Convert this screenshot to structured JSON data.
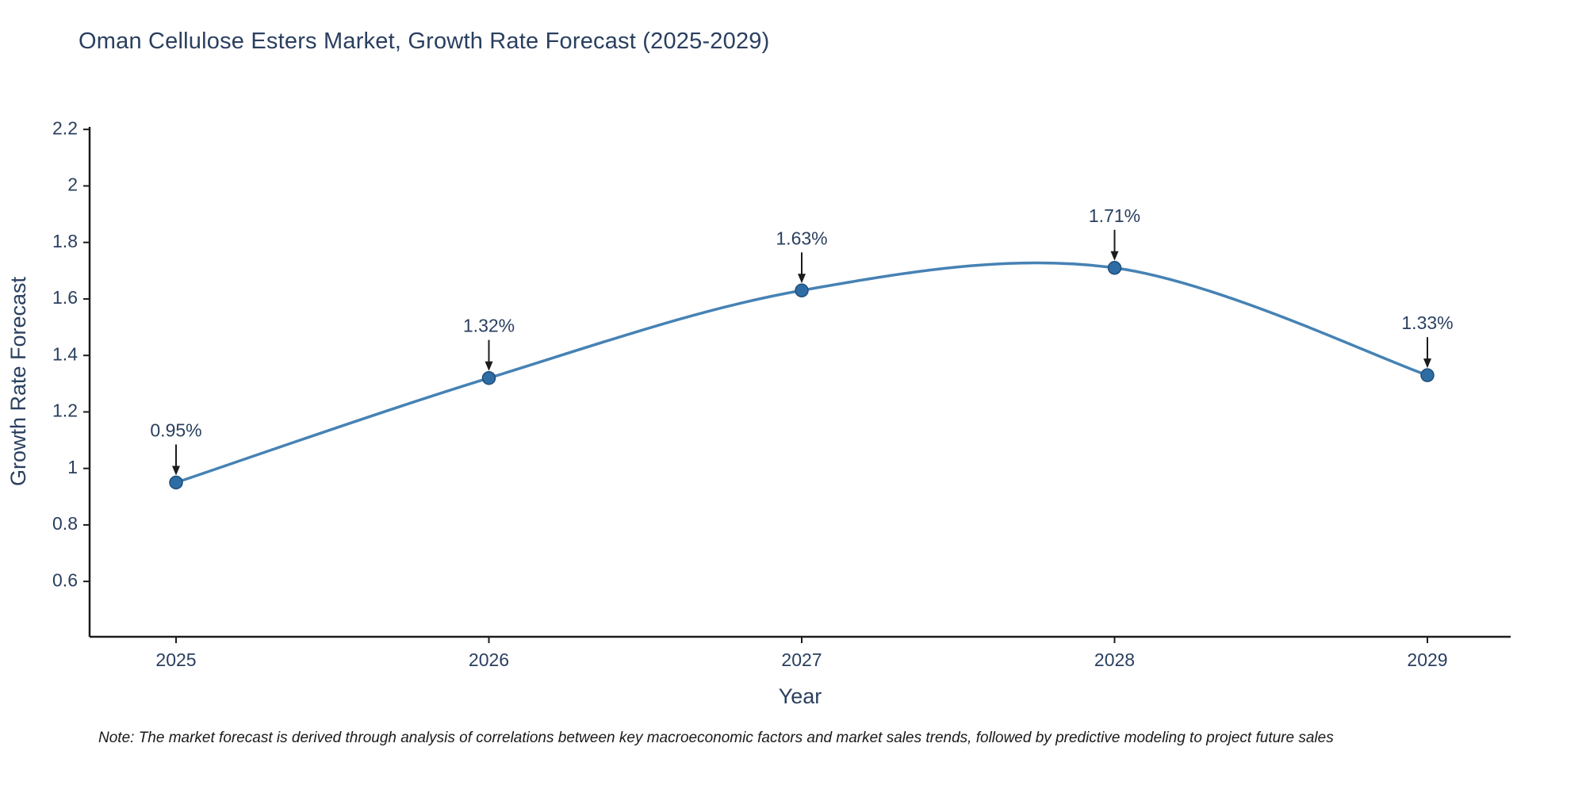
{
  "chart_data": {
    "type": "line",
    "title": "Oman Cellulose Esters Market, Growth Rate Forecast (2025-2029)",
    "x": [
      2025,
      2026,
      2027,
      2028,
      2029
    ],
    "values": [
      0.95,
      1.32,
      1.63,
      1.71,
      1.33
    ],
    "point_labels": [
      "0.95%",
      "1.32%",
      "1.63%",
      "1.71%",
      "1.33%"
    ],
    "xlabel": "Year",
    "ylabel": "Growth Rate Forecast",
    "yticks": [
      "2.2",
      "2",
      "1.8",
      "1.6",
      "1.4",
      "1.2",
      "1",
      "0.8",
      "0.6"
    ],
    "ytick_values": [
      2.2,
      2.0,
      1.8,
      1.6,
      1.4,
      1.2,
      1.0,
      0.8,
      0.6
    ],
    "ylim": [
      0.404,
      2.209
    ],
    "grid": false,
    "legend": "none",
    "line_shape": "spline",
    "line_color": "#4682b4",
    "marker_color": "#2e6da4",
    "marker_edge_color": "#1f4e79",
    "axis_color": "#1c1c1c",
    "text_color": "#2a3f5f"
  },
  "footnote": {
    "text": "Note: The market forecast is derived through analysis of correlations between key macroeconomic factors and market sales trends, followed by predictive modeling to project future sales"
  }
}
